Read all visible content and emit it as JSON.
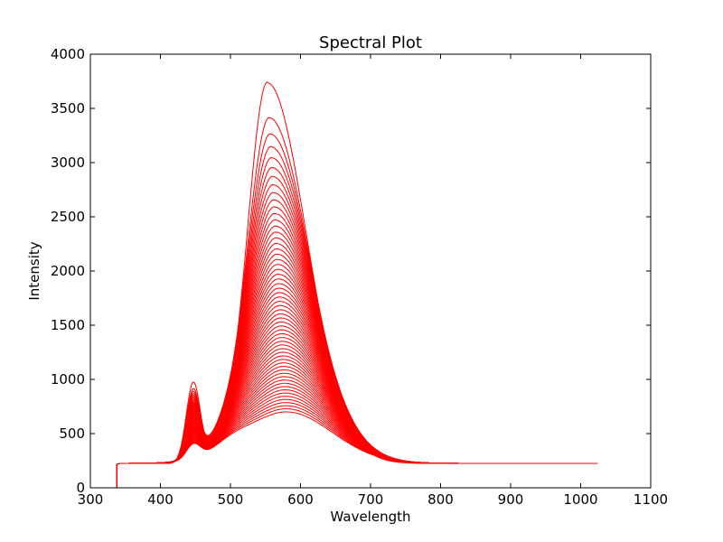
{
  "chart_data": {
    "type": "line",
    "title": "Spectral Plot",
    "xlabel": "Wavelength",
    "ylabel": "Intensity",
    "xlim": [
      300,
      1100
    ],
    "ylim": [
      0,
      4000
    ],
    "xticks": [
      300,
      400,
      500,
      600,
      700,
      800,
      900,
      1000,
      1100
    ],
    "yticks": [
      0,
      500,
      1000,
      1500,
      2000,
      2500,
      3000,
      3500,
      4000
    ],
    "grid": false,
    "legend": "none",
    "line_color": "#ff0000",
    "x_range": [
      338,
      1025
    ],
    "baseline": 225,
    "series_count": 60,
    "series_envelope": {
      "main_peak_wavelength": [
        553,
        580
      ],
      "main_peak_intensity": [
        3730,
        700
      ],
      "blue_peak_wavelength": 447,
      "blue_peak_intensity": [
        1000,
        360
      ]
    }
  }
}
